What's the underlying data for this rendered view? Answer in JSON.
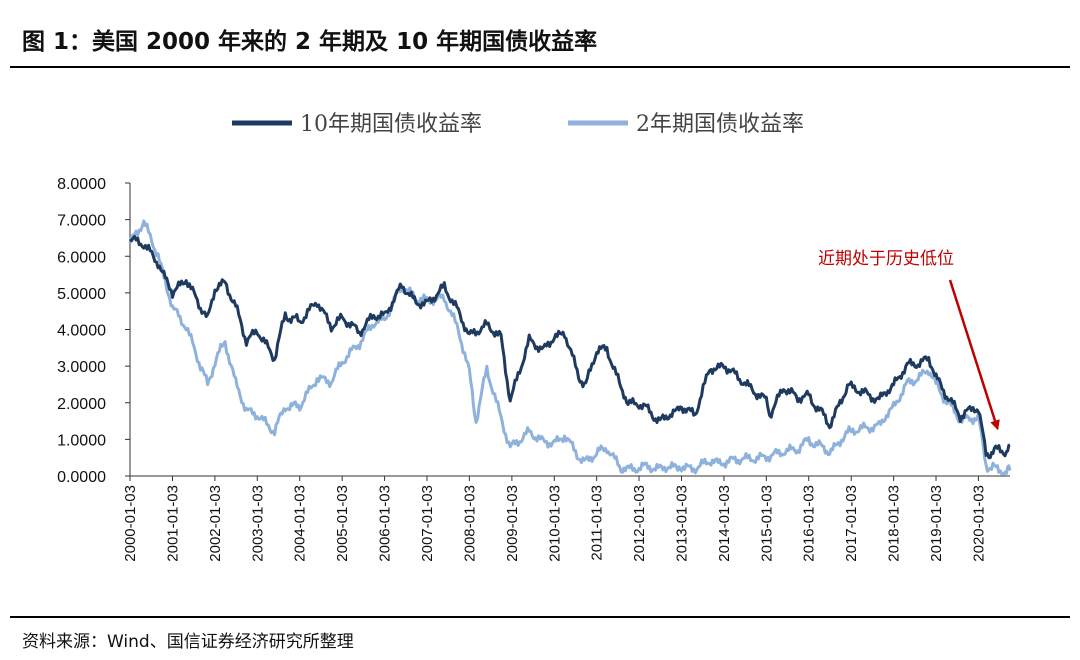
{
  "figure": {
    "title": "图 1：美国 2000 年来的 2 年期及 10 年期国债收益率",
    "source": "资料来源：Wind、国信证券经济研究所整理"
  },
  "chart_data": {
    "type": "line",
    "title": "",
    "xlabel": "",
    "ylabel": "",
    "ylim": [
      0,
      8
    ],
    "yticks": [
      "0.0000",
      "1.0000",
      "2.0000",
      "3.0000",
      "4.0000",
      "5.0000",
      "6.0000",
      "7.0000",
      "8.0000"
    ],
    "xlim": [
      "2000-01-03",
      "2020-10-01"
    ],
    "xticks": [
      "2000-01-03",
      "2001-01-03",
      "2002-01-03",
      "2003-01-03",
      "2004-01-03",
      "2005-01-03",
      "2006-01-03",
      "2007-01-03",
      "2008-01-03",
      "2009-01-03",
      "2010-01-03",
      "2011-01-03",
      "2012-01-03",
      "2013-01-03",
      "2014-01-03",
      "2015-01-03",
      "2016-01-03",
      "2017-01-03",
      "2018-01-03",
      "2019-01-03",
      "2020-01-03"
    ],
    "grid": false,
    "legend_position": "top",
    "series": [
      {
        "name": "10年期国债收益率",
        "color": "#1f3a5f",
        "points": [
          [
            "2000-01-03",
            6.5
          ],
          [
            "2000-05-01",
            6.3
          ],
          [
            "2000-09-01",
            5.8
          ],
          [
            "2001-01-03",
            5.0
          ],
          [
            "2001-05-01",
            5.4
          ],
          [
            "2001-09-01",
            4.6
          ],
          [
            "2001-11-01",
            4.3
          ],
          [
            "2002-01-03",
            5.1
          ],
          [
            "2002-04-01",
            5.3
          ],
          [
            "2002-07-01",
            4.6
          ],
          [
            "2002-10-01",
            3.7
          ],
          [
            "2003-01-03",
            4.0
          ],
          [
            "2003-06-01",
            3.2
          ],
          [
            "2003-09-01",
            4.4
          ],
          [
            "2004-01-03",
            4.2
          ],
          [
            "2004-06-01",
            4.8
          ],
          [
            "2004-10-01",
            4.1
          ],
          [
            "2005-01-03",
            4.3
          ],
          [
            "2005-06-01",
            3.9
          ],
          [
            "2005-10-01",
            4.4
          ],
          [
            "2006-01-03",
            4.4
          ],
          [
            "2006-06-01",
            5.2
          ],
          [
            "2006-10-01",
            4.7
          ],
          [
            "2007-01-03",
            4.7
          ],
          [
            "2007-06-01",
            5.2
          ],
          [
            "2007-10-01",
            4.5
          ],
          [
            "2008-01-03",
            3.8
          ],
          [
            "2008-06-01",
            4.1
          ],
          [
            "2008-10-01",
            3.8
          ],
          [
            "2008-12-20",
            2.1
          ],
          [
            "2009-06-01",
            3.7
          ],
          [
            "2009-10-01",
            3.4
          ],
          [
            "2010-01-03",
            3.8
          ],
          [
            "2010-04-01",
            3.9
          ],
          [
            "2010-08-01",
            2.7
          ],
          [
            "2010-10-01",
            2.5
          ],
          [
            "2011-01-03",
            3.4
          ],
          [
            "2011-04-01",
            3.5
          ],
          [
            "2011-08-01",
            2.4
          ],
          [
            "2011-10-01",
            2.0
          ],
          [
            "2012-01-03",
            2.0
          ],
          [
            "2012-07-01",
            1.5
          ],
          [
            "2012-12-01",
            1.8
          ],
          [
            "2013-01-03",
            1.9
          ],
          [
            "2013-05-01",
            1.7
          ],
          [
            "2013-09-01",
            2.9
          ],
          [
            "2014-01-03",
            3.0
          ],
          [
            "2014-06-01",
            2.6
          ],
          [
            "2014-10-01",
            2.3
          ],
          [
            "2015-01-03",
            2.1
          ],
          [
            "2015-02-01",
            1.7
          ],
          [
            "2015-06-01",
            2.4
          ],
          [
            "2015-10-01",
            2.1
          ],
          [
            "2016-01-03",
            2.2
          ],
          [
            "2016-07-01",
            1.4
          ],
          [
            "2016-12-15",
            2.5
          ],
          [
            "2017-01-03",
            2.4
          ],
          [
            "2017-09-01",
            2.1
          ],
          [
            "2018-01-03",
            2.5
          ],
          [
            "2018-05-01",
            3.0
          ],
          [
            "2018-11-01",
            3.2
          ],
          [
            "2019-01-03",
            2.7
          ],
          [
            "2019-08-01",
            1.6
          ],
          [
            "2019-12-01",
            1.9
          ],
          [
            "2020-01-03",
            1.8
          ],
          [
            "2020-03-09",
            0.6
          ],
          [
            "2020-06-01",
            0.7
          ],
          [
            "2020-09-01",
            0.7
          ],
          [
            "2020-10-01",
            0.85
          ]
        ]
      },
      {
        "name": "2年期国债收益率",
        "color": "#8eb2dc",
        "points": [
          [
            "2000-01-03",
            6.4
          ],
          [
            "2000-05-01",
            6.9
          ],
          [
            "2000-09-01",
            6.0
          ],
          [
            "2001-01-03",
            4.6
          ],
          [
            "2001-05-01",
            4.1
          ],
          [
            "2001-09-01",
            3.0
          ],
          [
            "2001-11-01",
            2.5
          ],
          [
            "2002-01-03",
            3.1
          ],
          [
            "2002-04-01",
            3.7
          ],
          [
            "2002-07-01",
            2.5
          ],
          [
            "2002-10-01",
            1.8
          ],
          [
            "2003-01-03",
            1.7
          ],
          [
            "2003-06-01",
            1.2
          ],
          [
            "2003-09-01",
            1.9
          ],
          [
            "2004-01-03",
            1.9
          ],
          [
            "2004-06-01",
            2.7
          ],
          [
            "2004-10-01",
            2.6
          ],
          [
            "2005-01-03",
            3.1
          ],
          [
            "2005-06-01",
            3.6
          ],
          [
            "2005-10-01",
            4.2
          ],
          [
            "2006-01-03",
            4.3
          ],
          [
            "2006-06-01",
            5.2
          ],
          [
            "2006-10-01",
            4.8
          ],
          [
            "2007-01-03",
            4.8
          ],
          [
            "2007-06-01",
            4.9
          ],
          [
            "2007-10-01",
            4.0
          ],
          [
            "2008-01-03",
            2.8
          ],
          [
            "2008-03-01",
            1.5
          ],
          [
            "2008-06-01",
            2.9
          ],
          [
            "2008-10-01",
            1.6
          ],
          [
            "2008-12-20",
            0.8
          ],
          [
            "2009-06-01",
            1.2
          ],
          [
            "2009-10-01",
            0.9
          ],
          [
            "2010-01-03",
            0.9
          ],
          [
            "2010-04-01",
            1.1
          ],
          [
            "2010-08-01",
            0.5
          ],
          [
            "2010-10-01",
            0.4
          ],
          [
            "2011-01-03",
            0.6
          ],
          [
            "2011-04-01",
            0.8
          ],
          [
            "2011-08-01",
            0.2
          ],
          [
            "2011-10-01",
            0.2
          ],
          [
            "2012-01-03",
            0.25
          ],
          [
            "2012-07-01",
            0.22
          ],
          [
            "2012-12-01",
            0.25
          ],
          [
            "2013-01-03",
            0.25
          ],
          [
            "2013-05-01",
            0.22
          ],
          [
            "2013-09-01",
            0.4
          ],
          [
            "2014-01-03",
            0.35
          ],
          [
            "2014-06-01",
            0.45
          ],
          [
            "2014-10-01",
            0.5
          ],
          [
            "2015-01-03",
            0.55
          ],
          [
            "2015-06-01",
            0.65
          ],
          [
            "2015-10-01",
            0.7
          ],
          [
            "2016-01-03",
            1.0
          ],
          [
            "2016-07-01",
            0.65
          ],
          [
            "2016-12-15",
            1.2
          ],
          [
            "2017-01-03",
            1.2
          ],
          [
            "2017-09-01",
            1.4
          ],
          [
            "2018-01-03",
            1.9
          ],
          [
            "2018-05-01",
            2.5
          ],
          [
            "2018-11-01",
            2.9
          ],
          [
            "2019-01-03",
            2.5
          ],
          [
            "2019-08-01",
            1.5
          ],
          [
            "2019-12-01",
            1.6
          ],
          [
            "2020-01-03",
            1.58
          ],
          [
            "2020-03-09",
            0.3
          ],
          [
            "2020-06-01",
            0.18
          ],
          [
            "2020-09-01",
            0.13
          ],
          [
            "2020-10-01",
            0.15
          ]
        ]
      }
    ],
    "annotation": {
      "text": "近期处于历史低位",
      "target": [
        "2020-06-15",
        1.3
      ],
      "color": "#c00000"
    }
  }
}
